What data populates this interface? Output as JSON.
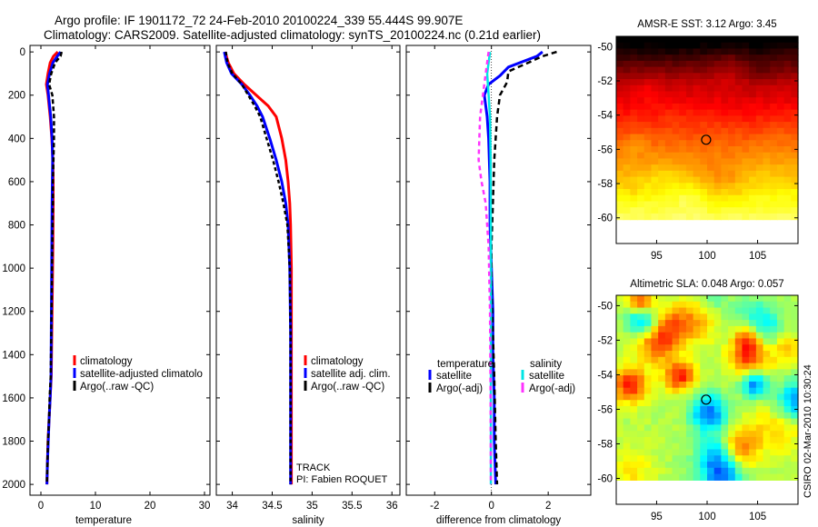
{
  "header": {
    "title_line1": "Argo profile: IF 1901172_72 24-Feb-2010 20100224_339 55.444S 99.907E",
    "title_line2": "Climatology: CARS2009. Satellite-adjusted climatology: synTS_20100224.nc (0.21d earlier)"
  },
  "footer": {
    "track_line1": "TRACK",
    "track_line2": "PI: Fabien ROQUET",
    "credit": "CSIRO 02-Mar-2010 10:30:24"
  },
  "chart_data": [
    {
      "type": "line",
      "name": "temperature-profile",
      "xlabel": "temperature",
      "ylabel": "",
      "xlim": [
        -2,
        31
      ],
      "ylim": [
        2050,
        -30
      ],
      "x_ticks": [
        0,
        10,
        20,
        30
      ],
      "y_ticks": [
        0,
        200,
        400,
        600,
        800,
        1000,
        1200,
        1400,
        1600,
        1800,
        2000
      ],
      "y_reversed": true,
      "legend": [
        {
          "label": "climatology",
          "color": "#ff0000"
        },
        {
          "label": "satellite-adjusted climatolo",
          "color": "#0000ff"
        },
        {
          "label": "Argo(..raw -QC)",
          "color": "#000000"
        }
      ],
      "series": [
        {
          "name": "climatology",
          "color": "#ff0000",
          "width": 3,
          "dash": "",
          "x": [
            3.1,
            2.3,
            1.7,
            1.3,
            1.0,
            1.3,
            1.7,
            2.0,
            2.2,
            2.25,
            2.25,
            2.2,
            2.1,
            2.0,
            1.9,
            1.7,
            1.5,
            1.3,
            1.2,
            1.1
          ],
          "y": [
            0,
            20,
            50,
            100,
            150,
            200,
            300,
            400,
            500,
            600,
            700,
            900,
            1100,
            1300,
            1500,
            1600,
            1700,
            1800,
            1900,
            2000
          ]
        },
        {
          "name": "satellite-adjusted climatology",
          "color": "#0000ff",
          "width": 3,
          "dash": "",
          "x": [
            3.6,
            3.0,
            2.2,
            1.6,
            1.2,
            1.4,
            1.8,
            2.05,
            2.15,
            2.1,
            2.05,
            2.0,
            1.95,
            1.9,
            1.85,
            1.7,
            1.5,
            1.35,
            1.2,
            1.1
          ],
          "y": [
            0,
            20,
            50,
            100,
            150,
            200,
            300,
            400,
            500,
            600,
            700,
            900,
            1100,
            1300,
            1500,
            1600,
            1700,
            1800,
            1900,
            2000
          ]
        },
        {
          "name": "Argo",
          "color": "#000000",
          "width": 2.5,
          "dash": "5,3",
          "x": [
            3.8,
            3.6,
            2.6,
            1.9,
            1.5,
            2.1,
            2.4,
            2.4,
            2.3,
            2.2,
            2.2,
            2.1,
            2.0,
            1.9,
            1.8,
            1.6,
            1.5,
            1.3,
            1.2,
            1.1
          ],
          "y": [
            0,
            20,
            50,
            100,
            150,
            200,
            300,
            400,
            500,
            600,
            700,
            900,
            1100,
            1300,
            1500,
            1600,
            1700,
            1800,
            1900,
            2000
          ]
        }
      ]
    },
    {
      "type": "line",
      "name": "salinity-profile",
      "xlabel": "salinity",
      "ylabel": "",
      "xlim": [
        33.8,
        36.1
      ],
      "ylim": [
        2050,
        -30
      ],
      "x_ticks": [
        34,
        34.5,
        35,
        35.5,
        36
      ],
      "y_ticks": [],
      "y_reversed": true,
      "legend": [
        {
          "label": "climatology",
          "color": "#ff0000"
        },
        {
          "label": "satellite adj. clim.",
          "color": "#0000ff"
        },
        {
          "label": "Argo(..raw -QC)",
          "color": "#000000"
        }
      ],
      "series": [
        {
          "name": "climatology",
          "color": "#ff0000",
          "width": 3,
          "dash": "",
          "x": [
            33.91,
            33.95,
            34.02,
            34.15,
            34.3,
            34.45,
            34.55,
            34.62,
            34.67,
            34.7,
            34.72,
            34.73,
            34.74,
            34.74,
            34.74,
            34.74
          ],
          "y": [
            0,
            50,
            100,
            150,
            200,
            250,
            300,
            400,
            500,
            600,
            700,
            800,
            1000,
            1300,
            1600,
            2000
          ]
        },
        {
          "name": "satellite adj. clim.",
          "color": "#0000ff",
          "width": 3,
          "dash": "",
          "x": [
            33.9,
            33.93,
            33.99,
            34.12,
            34.22,
            34.31,
            34.38,
            34.47,
            34.55,
            34.62,
            34.67,
            34.7,
            34.72,
            34.73,
            34.73,
            34.73
          ],
          "y": [
            0,
            50,
            100,
            150,
            200,
            250,
            300,
            400,
            500,
            600,
            700,
            800,
            1000,
            1300,
            1600,
            2000
          ]
        },
        {
          "name": "Argo",
          "color": "#000000",
          "width": 2.5,
          "dash": "4,3",
          "x": [
            33.92,
            33.94,
            34.0,
            34.12,
            34.2,
            34.28,
            34.35,
            34.43,
            34.51,
            34.58,
            34.64,
            34.69,
            34.72,
            34.73,
            34.73,
            34.73
          ],
          "y": [
            0,
            50,
            100,
            150,
            200,
            250,
            300,
            400,
            500,
            600,
            700,
            800,
            1000,
            1300,
            1600,
            2000
          ]
        }
      ]
    },
    {
      "type": "line",
      "name": "difference-profile",
      "xlabel": "difference from climatology",
      "ylabel": "",
      "xlim": [
        -3,
        3.5
      ],
      "ylim": [
        2050,
        -30
      ],
      "x_ticks": [
        -2,
        0,
        2
      ],
      "y_ticks": [],
      "y_reversed": true,
      "legend_left_title": "temperature",
      "legend_right_title": "salinity",
      "legend": [
        {
          "label": "satellite",
          "color": "#0000ff",
          "group": "temperature"
        },
        {
          "label": "Argo(-adj)",
          "color": "#000000",
          "group": "temperature"
        },
        {
          "label": "satellite",
          "color": "#00e5e5",
          "group": "salinity"
        },
        {
          "label": "Argo(-adj)",
          "color": "#ff33ff",
          "group": "salinity"
        }
      ],
      "series": [
        {
          "name": "temperature satellite",
          "color": "#0000ff",
          "width": 3,
          "dash": "",
          "x": [
            1.8,
            1.6,
            0.6,
            0.3,
            -0.1,
            -0.25,
            -0.15,
            -0.1,
            -0.05,
            -0.05,
            0.0,
            0.05,
            0.05,
            0.1,
            0.1,
            0.15
          ],
          "y": [
            0,
            20,
            70,
            110,
            150,
            200,
            300,
            400,
            600,
            800,
            1000,
            1200,
            1400,
            1600,
            1800,
            2000
          ]
        },
        {
          "name": "temperature Argo(-adj)",
          "color": "#000000",
          "width": 2.5,
          "dash": "6,4",
          "x": [
            2.3,
            1.8,
            1.3,
            0.6,
            0.55,
            0.3,
            0.2,
            0.1,
            0.05,
            0.0,
            0.0,
            0.05,
            0.1,
            0.15,
            0.2
          ],
          "y": [
            0,
            20,
            50,
            90,
            140,
            200,
            300,
            500,
            700,
            900,
            1100,
            1300,
            1500,
            1800,
            2000
          ]
        },
        {
          "name": "salinity satellite",
          "color": "#00e5e5",
          "width": 2.5,
          "dash": "",
          "x": [
            -0.05,
            -0.1,
            -0.15,
            -0.1,
            -0.05,
            -0.03,
            -0.02,
            -0.02,
            -0.02,
            -0.02,
            -0.02
          ],
          "y": [
            0,
            50,
            100,
            200,
            300,
            500,
            800,
            1100,
            1400,
            1700,
            2000
          ]
        },
        {
          "name": "salinity Argo(-adj)",
          "color": "#ff33ff",
          "width": 2.5,
          "dash": "5,4",
          "x": [
            -0.1,
            -0.2,
            -0.3,
            -0.4,
            -0.45,
            -0.35,
            -0.2,
            -0.1,
            -0.05,
            -0.03,
            -0.02
          ],
          "y": [
            0,
            100,
            200,
            300,
            500,
            600,
            700,
            900,
            1200,
            1600,
            2000
          ]
        }
      ]
    },
    {
      "type": "heatmap",
      "name": "sst-map",
      "title": "AMSR-E SST: 3.12  Argo: 3.45",
      "xlim": [
        91,
        109
      ],
      "ylim": [
        -61.5,
        -49.4
      ],
      "x_ticks": [
        95,
        100,
        105
      ],
      "y_ticks": [
        -50,
        -52,
        -54,
        -56,
        -58,
        -60
      ],
      "data_extent_y": [
        -60.1,
        -49.4
      ],
      "colormap": "hot",
      "marker": {
        "x": 99.9,
        "y": -55.44
      },
      "value_range": [
        3.0,
        4.6
      ]
    },
    {
      "type": "heatmap",
      "name": "sla-map",
      "title": "Altimetric SLA: 0.048  Argo: 0.057",
      "xlim": [
        91,
        109
      ],
      "ylim": [
        -61.5,
        -49.4
      ],
      "x_ticks": [
        95,
        100,
        105
      ],
      "y_ticks": [
        -50,
        -52,
        -54,
        -56,
        -58,
        -60
      ],
      "data_extent_y": [
        -60.1,
        -49.4
      ],
      "colormap": "jet",
      "marker": {
        "x": 99.9,
        "y": -55.44
      },
      "value_range": [
        -0.1,
        0.15
      ]
    }
  ]
}
